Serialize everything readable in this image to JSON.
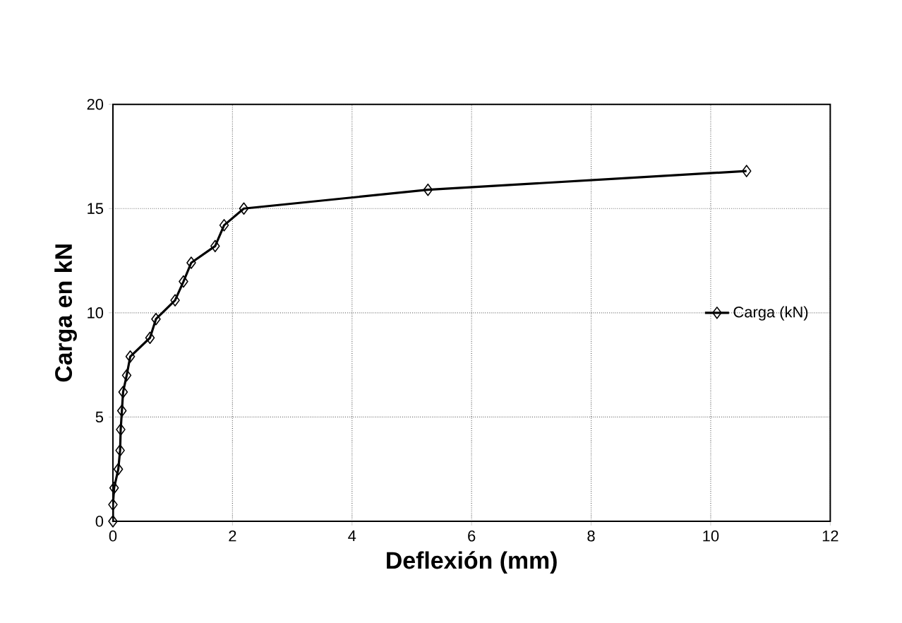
{
  "chart_data": {
    "type": "line",
    "xlabel": "Deflexión  (mm)",
    "ylabel": "Carga en kN",
    "xlim": [
      0,
      12
    ],
    "ylim": [
      0,
      20
    ],
    "xticks": [
      0,
      2,
      4,
      6,
      8,
      10,
      12
    ],
    "yticks": [
      0,
      5,
      10,
      15,
      20
    ],
    "grid": true,
    "legend": "right",
    "marker": "diamond",
    "line_style": "solid",
    "series": [
      {
        "name": "Carga (kN)",
        "color": "#000000",
        "x": [
          0,
          0.0,
          0.02,
          0.09,
          0.12,
          0.13,
          0.15,
          0.17,
          0.23,
          0.29,
          0.62,
          0.72,
          1.04,
          1.18,
          1.31,
          1.71,
          1.86,
          2.19,
          5.27,
          10.6
        ],
        "values": [
          0,
          0.8,
          1.6,
          2.5,
          3.4,
          4.4,
          5.3,
          6.2,
          7.0,
          7.9,
          8.8,
          9.7,
          10.6,
          11.5,
          12.4,
          13.2,
          14.2,
          15.0,
          15.9,
          16.8
        ]
      }
    ]
  }
}
